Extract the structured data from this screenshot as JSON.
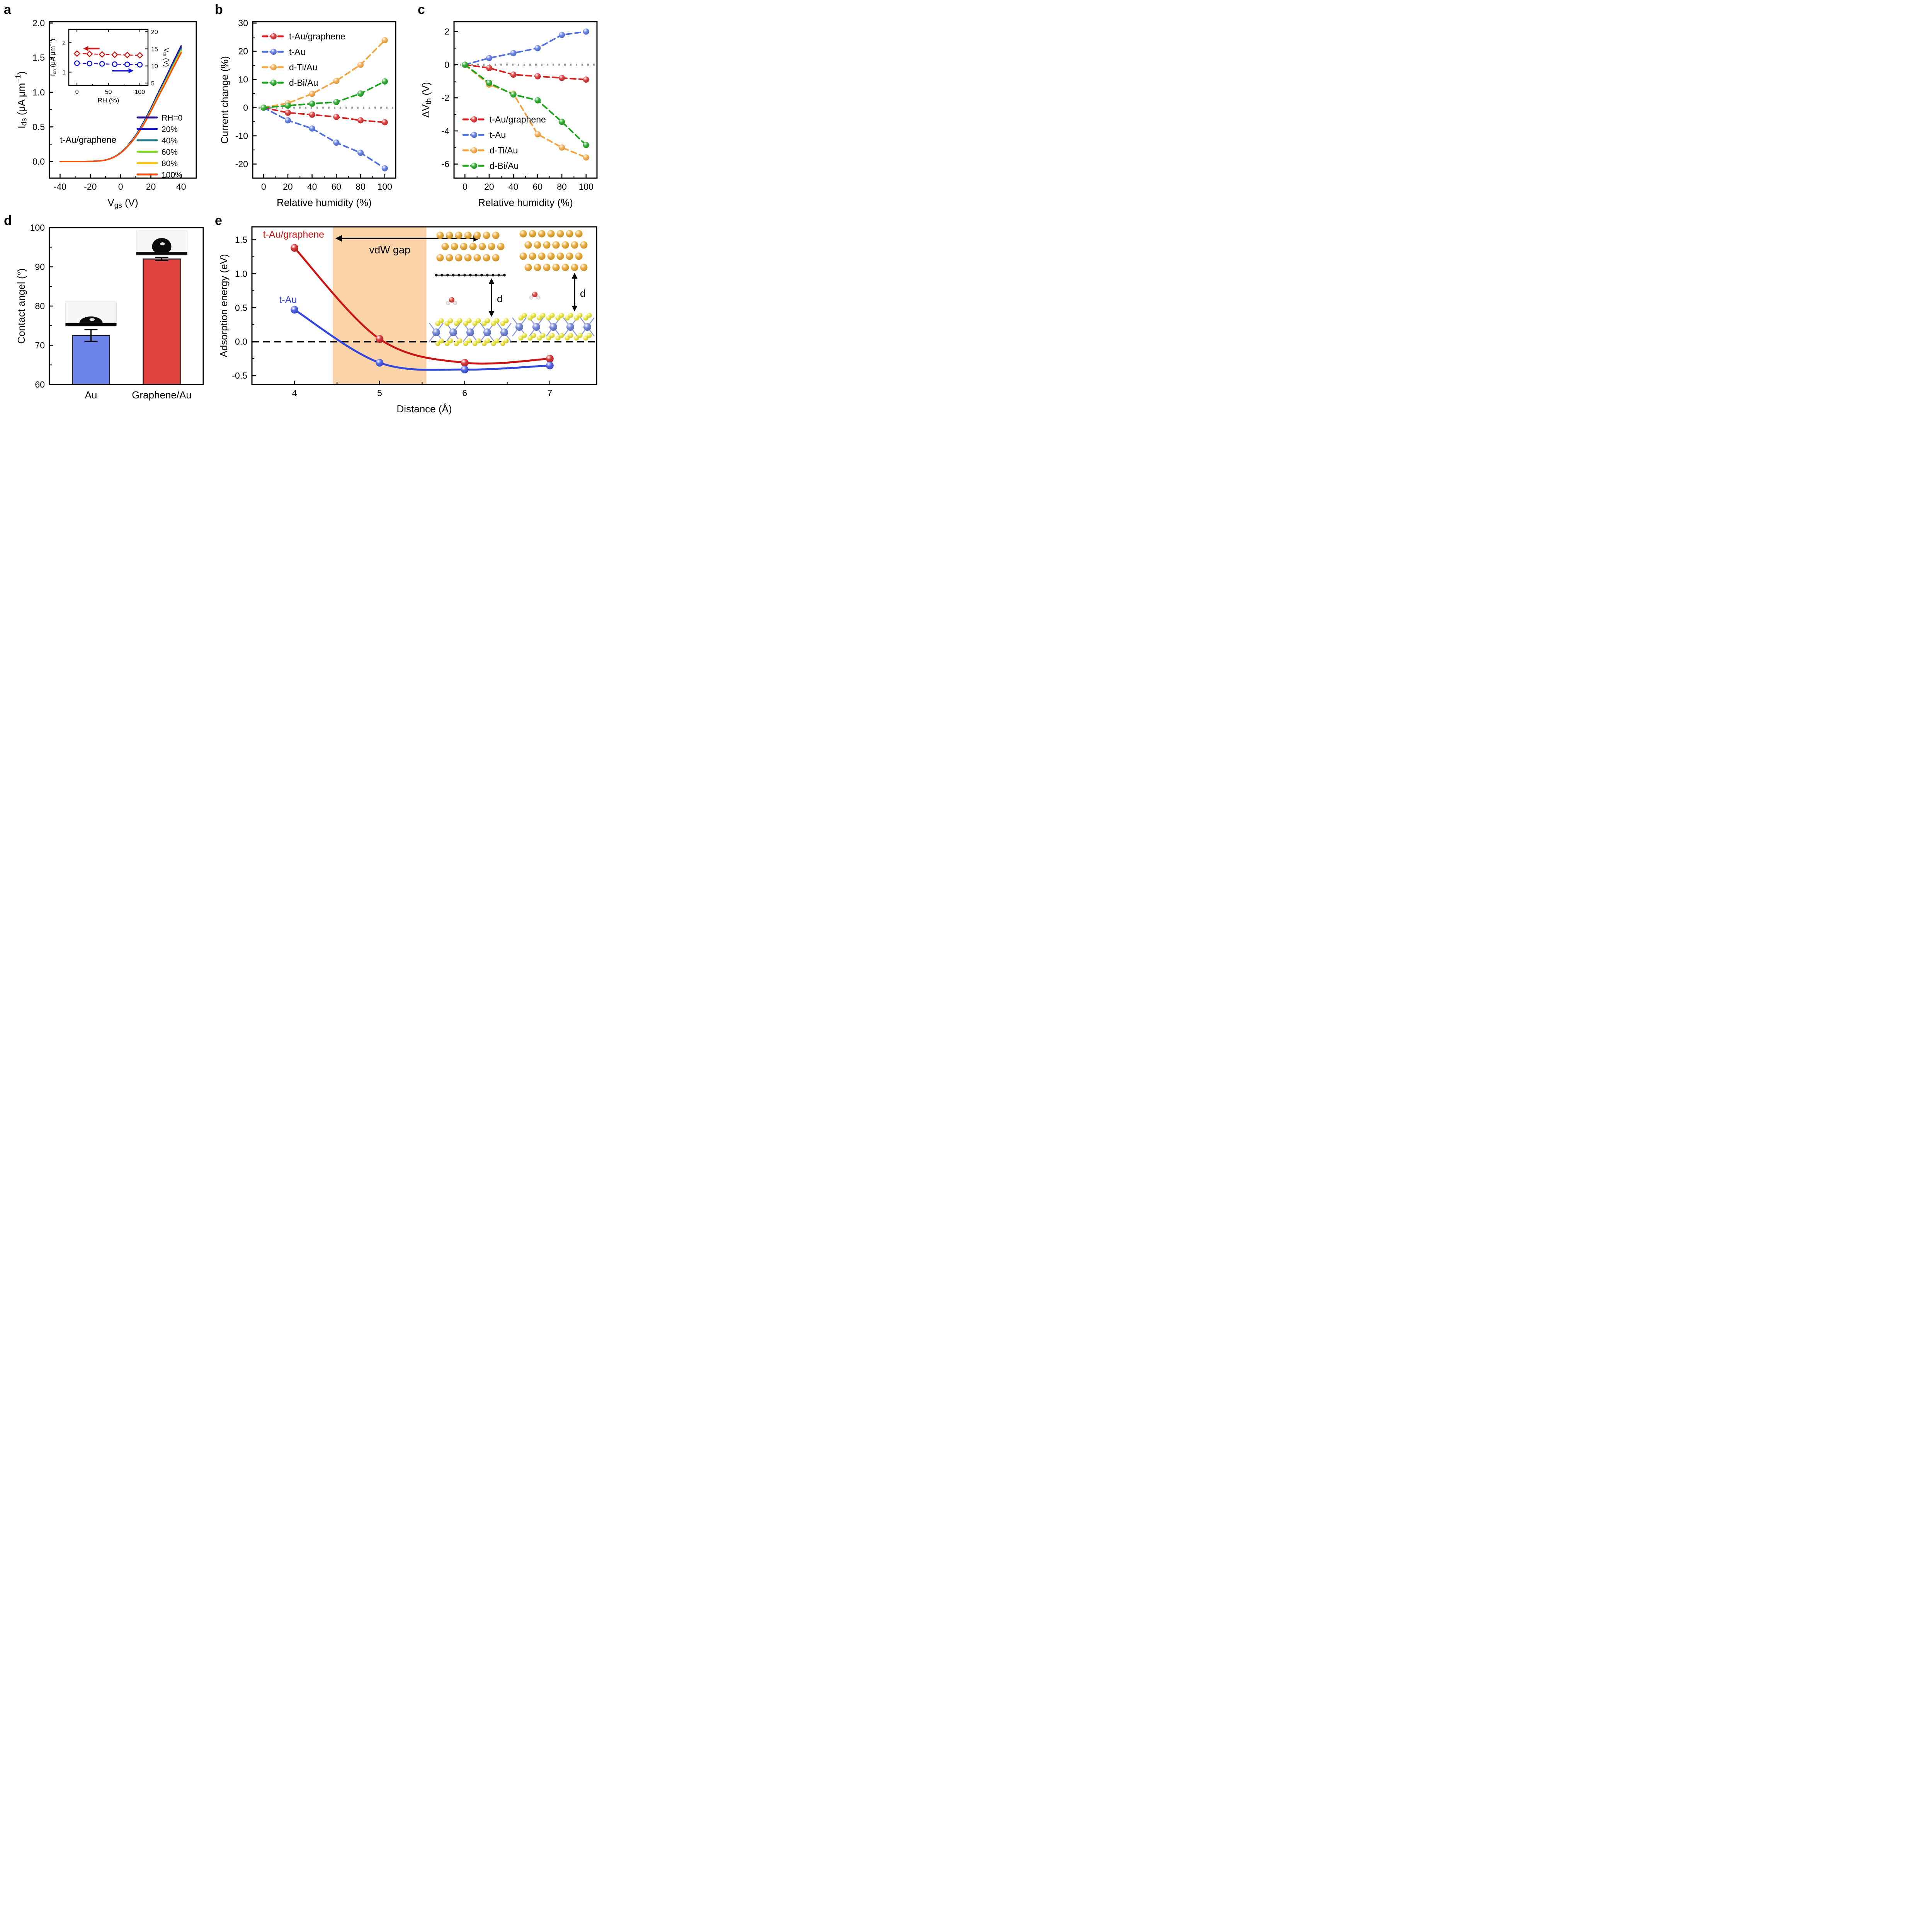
{
  "figure": {
    "background": "#ffffff",
    "panel_labels": {
      "a": "a",
      "b": "b",
      "c": "c",
      "d": "d",
      "e": "e"
    }
  },
  "chart_data": [
    {
      "id": "a",
      "type": "line",
      "smooth": true,
      "markers": false,
      "line_w": 3.5,
      "xlabel": [
        [
          "V",
          "n"
        ],
        [
          "gs",
          "s"
        ],
        [
          " (V)",
          "n"
        ]
      ],
      "ylabel": [
        [
          "I",
          "n"
        ],
        [
          "ds",
          "s"
        ],
        [
          " (μA μm",
          "n"
        ],
        [
          "−1",
          "u"
        ],
        [
          ")",
          "n"
        ]
      ],
      "xlim": [
        -47,
        50
      ],
      "ylim": [
        -0.24,
        2.02
      ],
      "xticks": [
        [
          -40,
          "-40"
        ],
        [
          -20,
          "-20"
        ],
        [
          0,
          "0"
        ],
        [
          20,
          "20"
        ],
        [
          40,
          "40"
        ]
      ],
      "yticks": [
        [
          0,
          "0.0"
        ],
        [
          0.5,
          "0.5"
        ],
        [
          1,
          "1.0"
        ],
        [
          1.5,
          "1.5"
        ],
        [
          2,
          "2.0"
        ]
      ],
      "xminor": [
        -30,
        -10,
        10,
        30
      ],
      "yminor": [
        0.25,
        0.75,
        1.25,
        1.75
      ],
      "annotation": {
        "text": "t-Au/graphene",
        "x": -40,
        "y": 0.27,
        "size": 23,
        "color": "#000000"
      },
      "x": [
        -40,
        -35,
        -30,
        -25,
        -20,
        -15,
        -10,
        -5,
        0,
        5,
        10,
        15,
        20,
        25,
        30,
        35,
        40
      ],
      "base_values": [
        0,
        0,
        0,
        0.001,
        0.003,
        0.008,
        0.022,
        0.06,
        0.13,
        0.24,
        0.38,
        0.56,
        0.77,
        1.0,
        1.22,
        1.45,
        1.67
      ],
      "series": [
        {
          "name": "RH=0",
          "color": "#2a0d8c",
          "scale": 1.0
        },
        {
          "name": "20%",
          "color": "#1812c9",
          "scale": 0.985
        },
        {
          "name": "40%",
          "color": "#1d7283",
          "scale": 0.975
        },
        {
          "name": "60%",
          "color": "#7edc1c",
          "scale": 0.962
        },
        {
          "name": "80%",
          "color": "#ffc412",
          "scale": 0.95
        },
        {
          "name": "100%",
          "color": "#fd4a11",
          "scale": 0.94
        }
      ],
      "legend_position": "inside-right",
      "legend_font": 21,
      "inset": {
        "xlabel": [
          [
            "RH (%)",
            "n"
          ]
        ],
        "ylabel_left": [
          [
            "I",
            "n"
          ],
          [
            "on",
            "s"
          ],
          [
            " (μA μm",
            "n"
          ],
          [
            "−1",
            "u"
          ],
          [
            ")",
            "n"
          ]
        ],
        "ylabel_right": [
          [
            "V",
            "n"
          ],
          [
            "th",
            "s"
          ],
          [
            " (V)",
            "n"
          ]
        ],
        "xlim": [
          -13,
          113
        ],
        "xticks": [
          [
            0,
            "0"
          ],
          [
            50,
            "50"
          ],
          [
            100,
            "100"
          ]
        ],
        "xminor": [
          25,
          75
        ],
        "ylim_left": [
          0.55,
          2.45
        ],
        "yticks_left": [
          [
            1,
            "1"
          ],
          [
            2,
            "2"
          ]
        ],
        "ylim_right": [
          4.3,
          20.7
        ],
        "yticks_right": [
          [
            5,
            "5"
          ],
          [
            10,
            "10"
          ],
          [
            15,
            "15"
          ],
          [
            20,
            "20"
          ]
        ],
        "x": [
          0,
          20,
          40,
          60,
          80,
          100
        ],
        "ion": {
          "name": "I_on",
          "color": "#cc1616",
          "values": [
            1.63,
            1.62,
            1.6,
            1.59,
            1.58,
            1.57
          ]
        },
        "vth": {
          "name": "V_th",
          "color": "#1414d8",
          "values": [
            10.8,
            10.7,
            10.6,
            10.5,
            10.45,
            10.35
          ]
        }
      }
    },
    {
      "id": "b",
      "type": "line",
      "markers": true,
      "marker_r": 8,
      "line_w": 4,
      "line_dash": "14 9",
      "xlabel": [
        [
          "Relative humidity (%)",
          "n"
        ]
      ],
      "ylabel": [
        [
          "Current change (%)",
          "n"
        ]
      ],
      "xlim": [
        -9,
        109
      ],
      "ylim": [
        -25,
        30.5
      ],
      "xticks": [
        [
          0,
          "0"
        ],
        [
          20,
          "20"
        ],
        [
          40,
          "40"
        ],
        [
          60,
          "60"
        ],
        [
          80,
          "80"
        ],
        [
          100,
          "100"
        ]
      ],
      "yticks": [
        [
          -20,
          "-20"
        ],
        [
          -10,
          "-10"
        ],
        [
          0,
          "0"
        ],
        [
          10,
          "10"
        ],
        [
          20,
          "20"
        ],
        [
          30,
          "30"
        ]
      ],
      "xminor": [
        10,
        30,
        50,
        70,
        90
      ],
      "yminor": [
        -15,
        -5,
        5,
        15,
        25
      ],
      "zero_line": {
        "y": 0,
        "color": "#9b9b9b",
        "dash": "4 11",
        "width": 5
      },
      "x": [
        0,
        20,
        40,
        60,
        80,
        100
      ],
      "series": [
        {
          "name": "t-Au/graphene",
          "color": "#d62020",
          "values": [
            0,
            -1.8,
            -2.5,
            -3.3,
            -4.5,
            -5.2
          ]
        },
        {
          "name": "t-Au",
          "color": "#4f6fe0",
          "values": [
            0,
            -4.5,
            -7.4,
            -12.4,
            -16.0,
            -21.5
          ]
        },
        {
          "name": "d-Ti/Au",
          "color": "#f5a33c",
          "values": [
            0,
            1.6,
            4.9,
            9.5,
            15.2,
            23.9
          ]
        },
        {
          "name": "d-Bi/Au",
          "color": "#16a318",
          "values": [
            0,
            0.7,
            1.4,
            2.0,
            5.0,
            9.3
          ]
        }
      ],
      "legend_position": "top-left",
      "legend_font": 23
    },
    {
      "id": "c",
      "type": "line",
      "markers": true,
      "marker_r": 8,
      "line_w": 4,
      "line_dash": "14 9",
      "xlabel": [
        [
          "Relative humidity (%)",
          "n"
        ]
      ],
      "ylabel": [
        [
          "ΔV",
          "n"
        ],
        [
          "th",
          "s"
        ],
        [
          " (V)",
          "n"
        ]
      ],
      "xlim": [
        -9,
        109
      ],
      "ylim": [
        -6.85,
        2.6
      ],
      "xticks": [
        [
          0,
          "0"
        ],
        [
          20,
          "20"
        ],
        [
          40,
          "40"
        ],
        [
          60,
          "60"
        ],
        [
          80,
          "80"
        ],
        [
          100,
          "100"
        ]
      ],
      "yticks": [
        [
          -6,
          "-6"
        ],
        [
          -4,
          "-4"
        ],
        [
          -2,
          "-2"
        ],
        [
          0,
          "0"
        ],
        [
          2,
          "2"
        ]
      ],
      "xminor": [
        10,
        30,
        50,
        70,
        90
      ],
      "yminor": [
        -5,
        -3,
        -1,
        1
      ],
      "zero_line": {
        "y": 0,
        "color": "#9b9b9b",
        "dash": "4 11",
        "width": 5
      },
      "x": [
        0,
        20,
        40,
        60,
        80,
        100
      ],
      "series": [
        {
          "name": "t-Au/graphene",
          "color": "#d62020",
          "values": [
            0,
            -0.2,
            -0.6,
            -0.7,
            -0.8,
            -0.9
          ]
        },
        {
          "name": "t-Au",
          "color": "#4f6fe0",
          "values": [
            0,
            0.4,
            0.7,
            1.0,
            1.8,
            2.0
          ]
        },
        {
          "name": "d-Ti/Au",
          "color": "#f5a33c",
          "values": [
            0,
            -1.2,
            -1.75,
            -4.2,
            -5.0,
            -5.6
          ]
        },
        {
          "name": "d-Bi/Au",
          "color": "#16a318",
          "values": [
            0,
            -1.1,
            -1.8,
            -2.15,
            -3.45,
            -4.85
          ]
        }
      ],
      "legend_position": "bottom-left",
      "legend_font": 23
    },
    {
      "id": "d",
      "type": "bar",
      "ylabel": [
        [
          "Contact angel (°)",
          "n"
        ]
      ],
      "ylim": [
        60,
        100
      ],
      "yticks": [
        [
          60,
          "60"
        ],
        [
          70,
          "70"
        ],
        [
          80,
          "80"
        ],
        [
          90,
          "90"
        ],
        [
          100,
          "100"
        ]
      ],
      "yminor": [
        65,
        75,
        85,
        95
      ],
      "categories": [
        "Au",
        "Graphene/Au"
      ],
      "values": [
        72.5,
        92.0
      ],
      "errors": [
        1.5,
        0.4
      ],
      "bar_colors": [
        "#6c83ea",
        "#e04240"
      ],
      "bar_edge": "#1a1a1a",
      "images": [
        {
          "name": "droplet-photo-au"
        },
        {
          "name": "droplet-photo-graphene-au"
        }
      ]
    },
    {
      "id": "e",
      "type": "line",
      "smooth": true,
      "markers": true,
      "marker_r": 10,
      "line_w": 5,
      "xlabel": [
        [
          "Distance (Å)",
          "n"
        ]
      ],
      "ylabel": [
        [
          "Adsorption energy (eV)",
          "n"
        ]
      ],
      "xlim": [
        3.5,
        7.55
      ],
      "ylim": [
        -0.63,
        1.69
      ],
      "xticks": [
        [
          4,
          "4"
        ],
        [
          5,
          "5"
        ],
        [
          6,
          "6"
        ],
        [
          7,
          "7"
        ]
      ],
      "yticks": [
        [
          -0.5,
          "-0.5"
        ],
        [
          0,
          "0.0"
        ],
        [
          0.5,
          "0.5"
        ],
        [
          1,
          "1.0"
        ],
        [
          1.5,
          "1.5"
        ]
      ],
      "xminor": [
        4.5,
        5.5,
        6.5
      ],
      "yminor": [
        -0.25,
        0.25,
        0.75,
        1.25
      ],
      "zero_line": {
        "y": 0,
        "color": "#000000",
        "dash": "18 11",
        "width": 4
      },
      "band": {
        "x0": 4.45,
        "x1": 5.55,
        "color": "#fbd3a9",
        "label": "vdW gap",
        "label_x": 5.12,
        "label_y": 1.3,
        "label_size": 27
      },
      "arrow": {
        "x0": 4.48,
        "x1": 6.18,
        "y": 1.52
      },
      "x": [
        4,
        5,
        6,
        7
      ],
      "series": [
        {
          "name": "t-Au/graphene",
          "color": "#cc1414",
          "values": [
            1.38,
            0.04,
            -0.31,
            -0.25
          ],
          "label_x": 3.63,
          "label_y": 1.53
        },
        {
          "name": "t-Au",
          "color": "#3346dd",
          "values": [
            0.47,
            -0.31,
            -0.41,
            -0.35
          ],
          "label_x": 3.82,
          "label_y": 0.57
        }
      ],
      "structures": {
        "left": "t-Au/graphene-structure",
        "right": "t-Au-structure",
        "left_d_label": "d",
        "right_d_label": "d"
      }
    }
  ]
}
